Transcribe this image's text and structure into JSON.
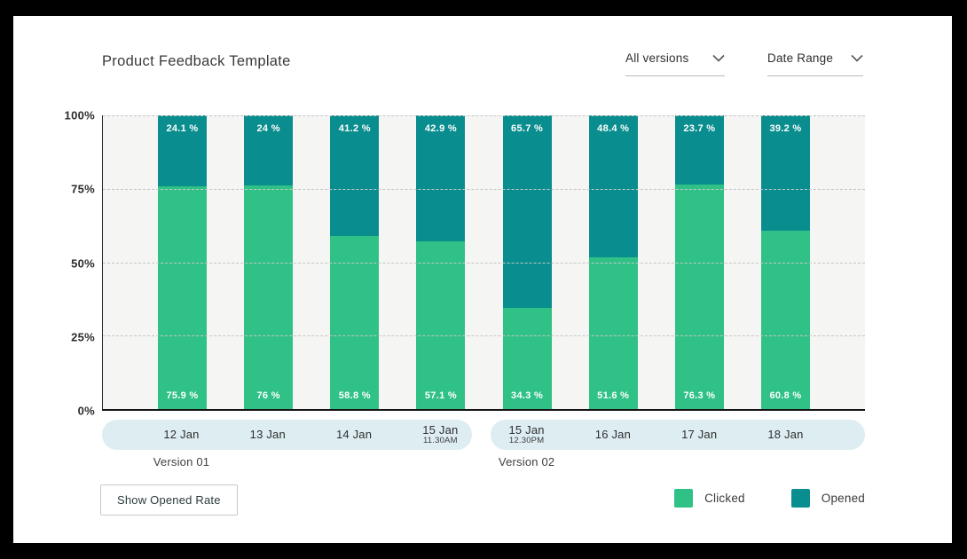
{
  "header": {
    "title": "Product Feedback Template",
    "filters": {
      "versions": {
        "label": "All versions"
      },
      "date_range": {
        "label": "Date Range"
      }
    }
  },
  "chart_data": {
    "type": "bar",
    "stacked": true,
    "unit": "%",
    "title": "Product Feedback Template",
    "categories": [
      "12 Jan",
      "13 Jan",
      "14 Jan",
      "15 Jan",
      "15 Jan",
      "16 Jan",
      "17 Jan",
      "18 Jan"
    ],
    "category_sub_labels": [
      "",
      "",
      "",
      "11.30AM",
      "12.30PM",
      "",
      "",
      ""
    ],
    "groups": [
      {
        "label": "Version 01",
        "from": 0,
        "to": 3
      },
      {
        "label": "Version 02",
        "from": 4,
        "to": 7
      }
    ],
    "series": [
      {
        "name": "Clicked",
        "color": "#2fc185",
        "position": "bottom",
        "values": [
          75.9,
          76,
          58.8,
          57.1,
          34.3,
          51.6,
          76.3,
          60.8
        ],
        "labels": [
          "75.9 %",
          "76 %",
          "58.8 %",
          "57.1 %",
          "34.3 %",
          "51.6 %",
          "76.3 %",
          "60.8 %"
        ]
      },
      {
        "name": "Opened",
        "color": "#0a8d8e",
        "position": "top",
        "values": [
          24.1,
          24,
          41.2,
          42.9,
          65.7,
          48.4,
          23.7,
          39.2
        ],
        "labels": [
          "24.1 %",
          "24 %",
          "41.2 %",
          "42.9 %",
          "65.7 %",
          "48.4 %",
          "23.7 %",
          "39.2 %"
        ]
      }
    ],
    "y_ticks": [
      "100%",
      "75%",
      "50%",
      "25%",
      "0%"
    ],
    "ylim": [
      0,
      100
    ],
    "grid": "horizontal-dashed",
    "legend_position": "bottom-right"
  },
  "footer": {
    "button_label": "Show Opened Rate",
    "legend": [
      {
        "label": "Clicked",
        "color": "#2fc185"
      },
      {
        "label": "Opened",
        "color": "#0a8d8e"
      }
    ]
  },
  "colors": {
    "clicked": "#2fc185",
    "opened": "#0a8d8e",
    "plot_background": "#f5f5f4",
    "date_band": "#ddedf2",
    "frame": "#000000"
  }
}
